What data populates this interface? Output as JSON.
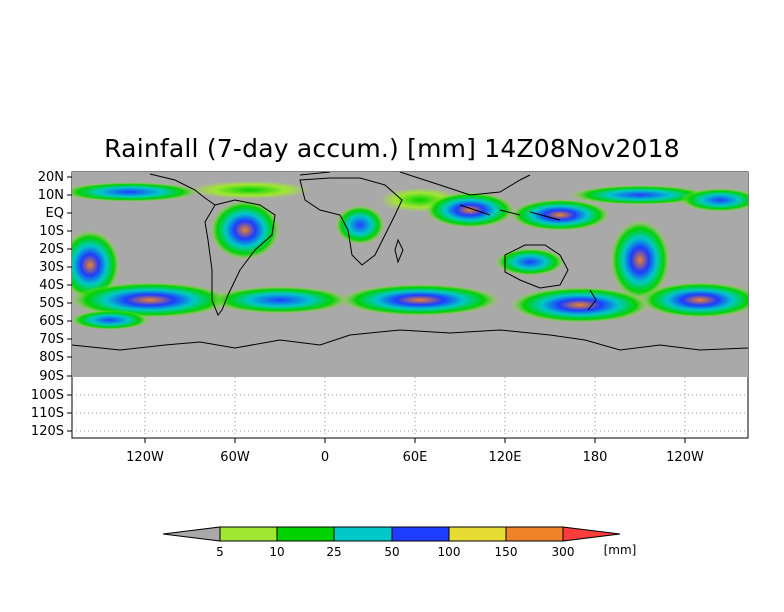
{
  "title": "Rainfall (7-day accum.) [mm] 14Z08Nov2018",
  "map": {
    "lat_labels": [
      "20N",
      "10N",
      "EQ",
      "10S",
      "20S",
      "30S",
      "40S",
      "50S",
      "60S",
      "70S",
      "80S",
      "90S",
      "100S",
      "110S",
      "120S"
    ],
    "lon_labels": [
      "120W",
      "60W",
      "0",
      "60E",
      "120E",
      "180",
      "120W"
    ],
    "colors": {
      "land_ocean_gray": "#a9a9a9",
      "coastline": "#000000",
      "grid": "#8a8a8a"
    }
  },
  "legend": {
    "unit": "[mm]",
    "labels": [
      "5",
      "10",
      "25",
      "50",
      "100",
      "150",
      "300"
    ],
    "colors": [
      "#a9a9a9",
      "#a0e632",
      "#00d200",
      "#00c8c8",
      "#1e3cff",
      "#e6dc32",
      "#f08228",
      "#fa3c3c"
    ]
  }
}
